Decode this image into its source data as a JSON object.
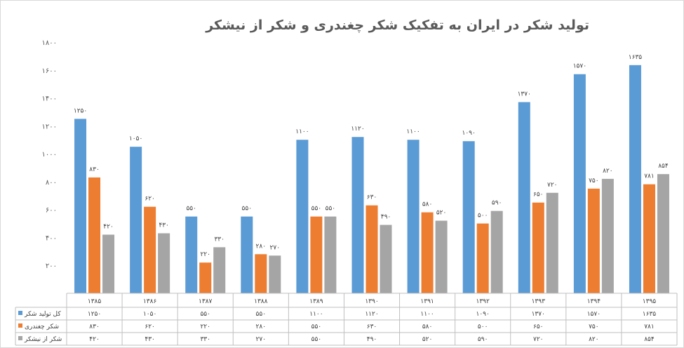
{
  "chart_data": {
    "type": "bar",
    "title": "تولید شکر در ایران به تفکیک شکر چغندری و شکر از نیشکر",
    "categories": [
      "۱۳۸۵",
      "۱۳۸۶",
      "۱۳۸۷",
      "۱۳۸۸",
      "۱۳۸۹",
      "۱۳۹۰",
      "۱۳۹۱",
      "۱۳۹۲",
      "۱۳۹۳",
      "۱۳۹۴",
      "۱۳۹۵"
    ],
    "series": [
      {
        "name": "کل تولید شکر",
        "color": "#5b9bd5",
        "values": [
          1250,
          1050,
          550,
          550,
          1100,
          1120,
          1100,
          1090,
          1370,
          1570,
          1635
        ],
        "labels": [
          "۱۲۵۰",
          "۱۰۵۰",
          "۵۵۰",
          "۵۵۰",
          "۱۱۰۰",
          "۱۱۲۰",
          "۱۱۰۰",
          "۱۰۹۰",
          "۱۳۷۰",
          "۱۵۷۰",
          "۱۶۳۵"
        ]
      },
      {
        "name": "شکر چغندری",
        "color": "#ed7d31",
        "values": [
          830,
          620,
          220,
          280,
          550,
          630,
          580,
          500,
          650,
          750,
          781
        ],
        "labels": [
          "۸۳۰",
          "۶۲۰",
          "۲۲۰",
          "۲۸۰",
          "۵۵۰",
          "۶۳۰",
          "۵۸۰",
          "۵۰۰",
          "۶۵۰",
          "۷۵۰",
          "۷۸۱"
        ]
      },
      {
        "name": "شکر از نیشکر",
        "color": "#a5a5a5",
        "values": [
          420,
          430,
          330,
          270,
          550,
          490,
          520,
          590,
          720,
          820,
          854
        ],
        "labels": [
          "۴۲۰",
          "۴۳۰",
          "۳۳۰",
          "۲۷۰",
          "۵۵۰",
          "۴۹۰",
          "۵۲۰",
          "۵۹۰",
          "۷۲۰",
          "۸۲۰",
          "۸۵۴"
        ]
      }
    ],
    "ylim": [
      0,
      1800
    ],
    "yticks": [
      0,
      200,
      400,
      600,
      800,
      1000,
      1200,
      1400,
      1600,
      1800
    ],
    "ytick_labels": [
      "",
      "۲۰۰",
      "۴۰۰",
      "۶۰۰",
      "۸۰۰",
      "۱۰۰۰",
      "۱۲۰۰",
      "۱۴۰۰",
      "۱۶۰۰",
      "۱۸۰۰"
    ],
    "grid": false,
    "legend": "data-table"
  }
}
